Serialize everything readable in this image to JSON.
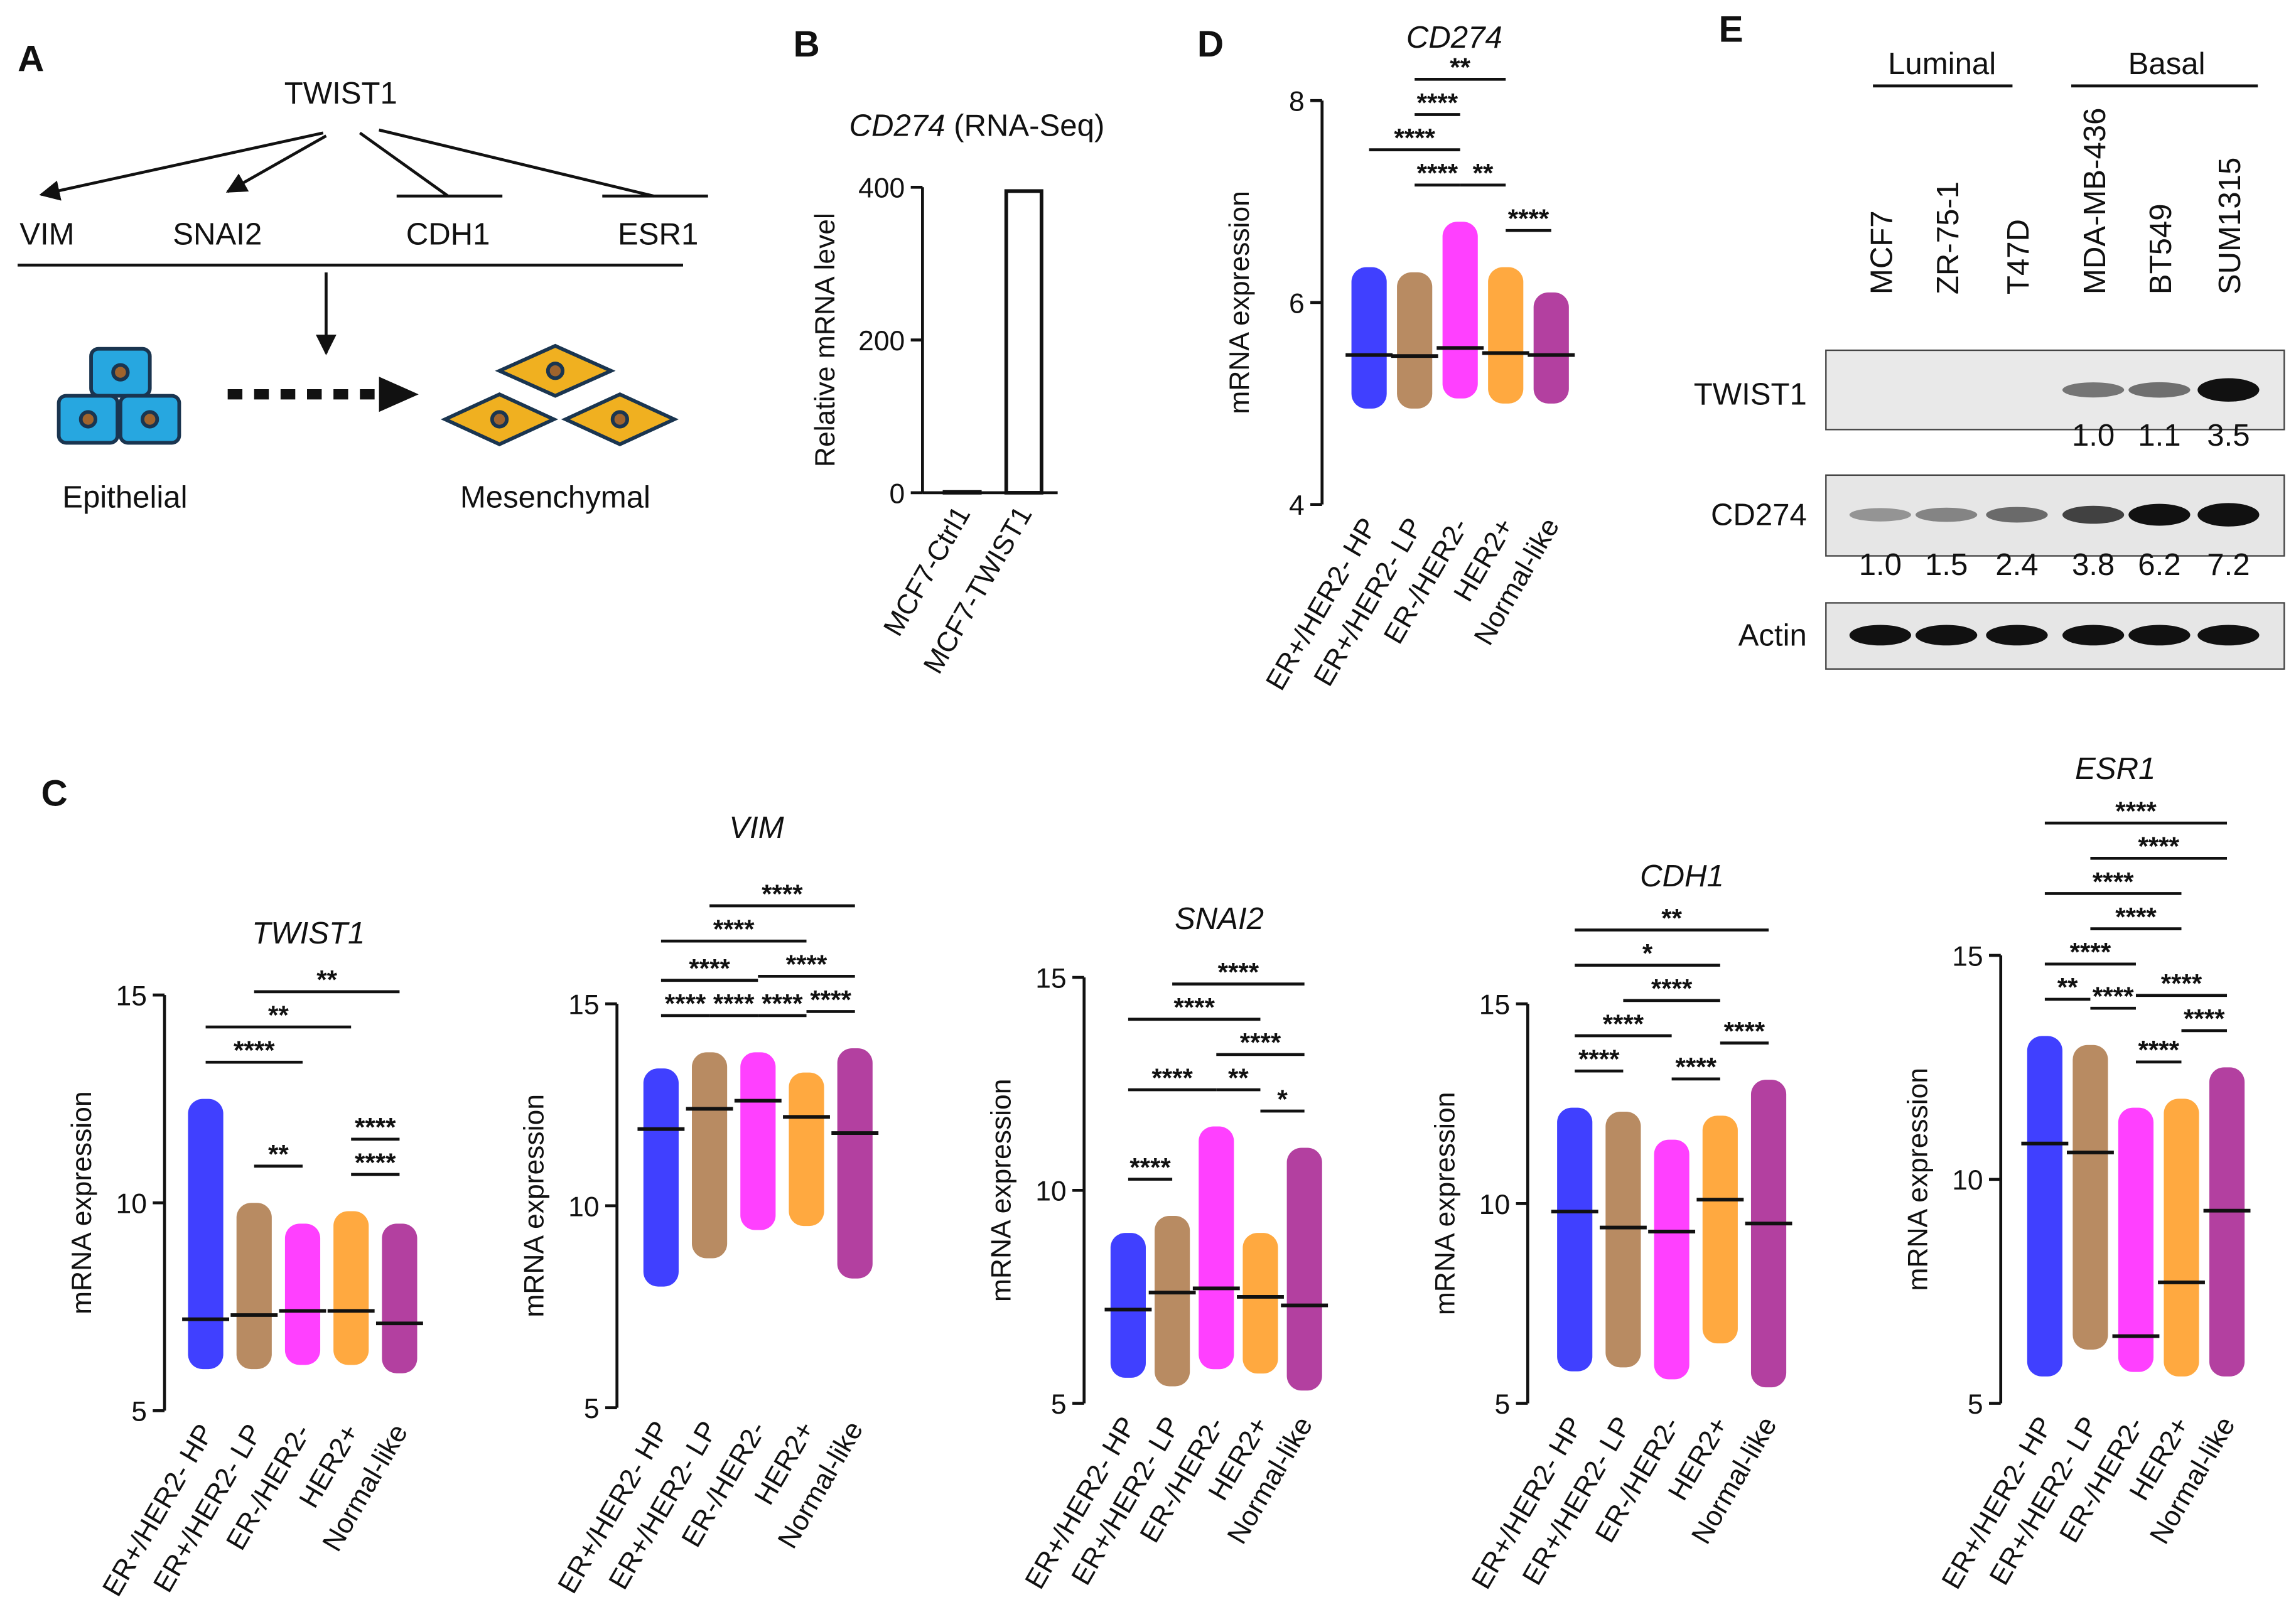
{
  "panel_labels": [
    "A",
    "B",
    "C",
    "D",
    "E"
  ],
  "panel_A": {
    "regulator": "TWIST1",
    "targets": [
      "VIM",
      "SNAI2",
      "CDH1",
      "ESR1"
    ],
    "from_state": "Epithelial",
    "to_state": "Mesenchymal"
  },
  "chart_data": [
    {
      "type": "bar",
      "title": "CD274",
      "subtitle": "(RNA-Seq)",
      "y_label": "Relative mRNA level",
      "categories": [
        "MCF7-Ctrl1",
        "MCF7-TWIST1"
      ],
      "values": [
        1,
        395
      ],
      "color": "#ffffff",
      "ylim": [
        0,
        400
      ],
      "yticks": [
        0,
        200,
        400
      ]
    },
    {
      "type": "swarm",
      "title": "CD274",
      "y_label": "mRNA expression",
      "categories": [
        "ER+/HER2- HP",
        "ER+/HER2- LP",
        "ER-/HER2-",
        "HER2+",
        "Normal-like"
      ],
      "colors": [
        "#0000ff",
        "#a0642d",
        "#ff00ff",
        "#ff8c00",
        "#990080"
      ],
      "values": [
        5.48,
        5.47,
        5.55,
        5.5,
        5.48
      ],
      "mins": [
        4.95,
        4.95,
        5.05,
        5.0,
        5.0
      ],
      "maxs": [
        6.35,
        6.3,
        6.8,
        6.35,
        6.1
      ],
      "ylim": [
        4,
        8
      ],
      "yticks": [
        4,
        6,
        8
      ],
      "significance": [
        {
          "groups": [
            1,
            3
          ],
          "label": "**"
        },
        {
          "groups": [
            1,
            2
          ],
          "label": "****"
        },
        {
          "groups": [
            3,
            4
          ],
          "label": "****"
        },
        {
          "groups": [
            0,
            2
          ],
          "label": "****"
        },
        {
          "groups": [
            2,
            3
          ],
          "label": "**"
        },
        {
          "groups": [
            1,
            2
          ],
          "label": "****"
        }
      ]
    },
    {
      "type": "swarm",
      "title": "TWIST1",
      "y_label": "mRNA expression",
      "categories": [
        "ER+/HER2- HP",
        "ER+/HER2- LP",
        "ER-/HER2-",
        "HER2+",
        "Normal-like"
      ],
      "colors": [
        "#0000ff",
        "#a0642d",
        "#ff00ff",
        "#ff8c00",
        "#990080"
      ],
      "values": [
        7.2,
        7.3,
        7.4,
        7.4,
        7.1
      ],
      "mins": [
        6.0,
        6.0,
        6.1,
        6.1,
        5.9
      ],
      "maxs": [
        12.5,
        10.0,
        9.5,
        9.8,
        9.5
      ],
      "ylim": [
        5,
        15
      ],
      "yticks": [
        5,
        10,
        15
      ],
      "significance": [
        {
          "groups": [
            1,
            4
          ],
          "label": "**"
        },
        {
          "groups": [
            0,
            3
          ],
          "label": "**"
        },
        {
          "groups": [
            0,
            2
          ],
          "label": "****"
        },
        {
          "groups": [
            3,
            4
          ],
          "label": "****"
        },
        {
          "groups": [
            1,
            2
          ],
          "label": "**"
        },
        {
          "groups": [
            3,
            4
          ],
          "label": "****"
        }
      ]
    },
    {
      "type": "swarm",
      "title": "VIM",
      "y_label": "mRNA expression",
      "categories": [
        "ER+/HER2- HP",
        "ER+/HER2- LP",
        "ER-/HER2-",
        "HER2+",
        "Normal-like"
      ],
      "colors": [
        "#0000ff",
        "#a0642d",
        "#ff00ff",
        "#ff8c00",
        "#990080"
      ],
      "values": [
        11.9,
        12.4,
        12.6,
        12.2,
        11.8
      ],
      "mins": [
        8.0,
        8.7,
        9.4,
        9.5,
        8.2
      ],
      "maxs": [
        13.4,
        13.8,
        13.8,
        13.3,
        13.9
      ],
      "ylim": [
        5,
        15
      ],
      "yticks": [
        5,
        10,
        15
      ],
      "significance": [
        {
          "groups": [
            1,
            4
          ],
          "label": "****"
        },
        {
          "groups": [
            0,
            3
          ],
          "label": "****"
        },
        {
          "groups": [
            0,
            2
          ],
          "label": "****"
        },
        {
          "groups": [
            2,
            4
          ],
          "label": "****"
        },
        {
          "groups": [
            1,
            2
          ],
          "label": "****"
        },
        {
          "groups": [
            3,
            4
          ],
          "label": "****"
        },
        {
          "groups": [
            0,
            1
          ],
          "label": "****"
        },
        {
          "groups": [
            2,
            3
          ],
          "label": "****"
        }
      ]
    },
    {
      "type": "swarm",
      "title": "SNAI2",
      "y_label": "mRNA expression",
      "categories": [
        "ER+/HER2- HP",
        "ER+/HER2- LP",
        "ER-/HER2-",
        "HER2+",
        "Normal-like"
      ],
      "colors": [
        "#0000ff",
        "#a0642d",
        "#ff00ff",
        "#ff8c00",
        "#990080"
      ],
      "values": [
        7.2,
        7.6,
        7.7,
        7.5,
        7.3
      ],
      "mins": [
        5.6,
        5.4,
        5.8,
        5.7,
        5.3
      ],
      "maxs": [
        9.0,
        9.4,
        11.5,
        9.0,
        11.0
      ],
      "ylim": [
        5,
        15
      ],
      "yticks": [
        5,
        10,
        15
      ],
      "significance": [
        {
          "groups": [
            1,
            4
          ],
          "label": "****"
        },
        {
          "groups": [
            0,
            3
          ],
          "label": "****"
        },
        {
          "groups": [
            0,
            2
          ],
          "label": "****"
        },
        {
          "groups": [
            2,
            4
          ],
          "label": "****"
        },
        {
          "groups": [
            2,
            3
          ],
          "label": "**"
        },
        {
          "groups": [
            3,
            4
          ],
          "label": "*"
        },
        {
          "groups": [
            0,
            1
          ],
          "label": "****"
        }
      ]
    },
    {
      "type": "swarm",
      "title": "CDH1",
      "y_label": "mRNA expression",
      "categories": [
        "ER+/HER2- HP",
        "ER+/HER2- LP",
        "ER-/HER2-",
        "HER2+",
        "Normal-like"
      ],
      "colors": [
        "#0000ff",
        "#a0642d",
        "#ff00ff",
        "#ff8c00",
        "#990080"
      ],
      "values": [
        9.8,
        9.4,
        9.3,
        10.1,
        9.5
      ],
      "mins": [
        5.8,
        5.9,
        5.6,
        6.5,
        5.4
      ],
      "maxs": [
        12.4,
        12.3,
        11.6,
        12.2,
        13.1
      ],
      "ylim": [
        5,
        15
      ],
      "yticks": [
        5,
        10,
        15
      ],
      "significance": [
        {
          "groups": [
            0,
            4
          ],
          "label": "**"
        },
        {
          "groups": [
            0,
            3
          ],
          "label": "*"
        },
        {
          "groups": [
            1,
            3
          ],
          "label": "****"
        },
        {
          "groups": [
            0,
            2
          ],
          "label": "****"
        },
        {
          "groups": [
            3,
            4
          ],
          "label": "****"
        },
        {
          "groups": [
            0,
            1
          ],
          "label": "****"
        },
        {
          "groups": [
            2,
            3
          ],
          "label": "****"
        }
      ]
    },
    {
      "type": "swarm",
      "title": "ESR1",
      "y_label": "mRNA expression",
      "categories": [
        "ER+/HER2- HP",
        "ER+/HER2- LP",
        "ER-/HER2-",
        "HER2+",
        "Normal-like"
      ],
      "colors": [
        "#0000ff",
        "#a0642d",
        "#ff00ff",
        "#ff8c00",
        "#990080"
      ],
      "values": [
        10.8,
        10.6,
        6.5,
        7.7,
        9.3
      ],
      "mins": [
        5.6,
        6.2,
        5.7,
        5.6,
        5.6
      ],
      "maxs": [
        13.2,
        13.0,
        11.6,
        11.8,
        12.5
      ],
      "ylim": [
        5,
        15
      ],
      "yticks": [
        5,
        10,
        15
      ],
      "significance": [
        {
          "groups": [
            0,
            4
          ],
          "label": "****"
        },
        {
          "groups": [
            1,
            4
          ],
          "label": "****"
        },
        {
          "groups": [
            0,
            3
          ],
          "label": "****"
        },
        {
          "groups": [
            1,
            3
          ],
          "label": "****"
        },
        {
          "groups": [
            0,
            2
          ],
          "label": "****"
        },
        {
          "groups": [
            2,
            4
          ],
          "label": "****"
        },
        {
          "groups": [
            1,
            2
          ],
          "label": "****"
        },
        {
          "groups": [
            3,
            4
          ],
          "label": "****"
        },
        {
          "groups": [
            0,
            1
          ],
          "label": "**"
        },
        {
          "groups": [
            2,
            3
          ],
          "label": "****"
        }
      ]
    }
  ],
  "panel_E": {
    "groups": [
      "Luminal",
      "Basal"
    ],
    "cell_lines": [
      "MCF7",
      "ZR-75-1",
      "T47D",
      "MDA-MB-436",
      "BT549",
      "SUM1315"
    ],
    "rows": [
      "TWIST1",
      "CD274",
      "Actin"
    ],
    "twist1_quant": {
      "values": [
        null,
        null,
        null,
        1.0,
        1.1,
        3.5
      ],
      "value_labels": [
        null,
        null,
        null,
        "1.0",
        "1.1",
        "3.5"
      ]
    },
    "cd274_quant": {
      "values": [
        1.0,
        1.5,
        2.4,
        3.8,
        6.2,
        7.2
      ],
      "value_labels": [
        "1.0",
        "1.5",
        "2.4",
        "3.8",
        "6.2",
        "7.2"
      ]
    }
  }
}
